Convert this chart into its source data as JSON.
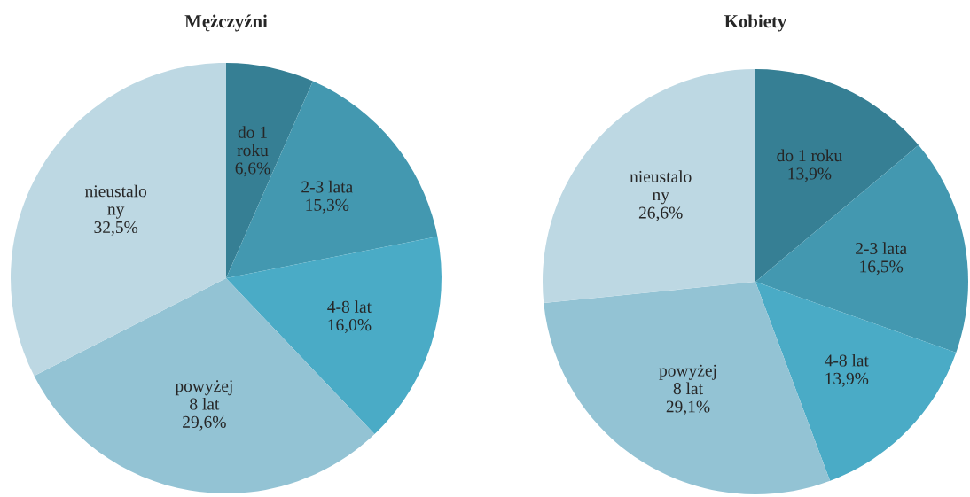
{
  "chart_data": [
    {
      "type": "pie",
      "title": "Mężczyźni",
      "categories": [
        "do 1\nroku",
        "2-3 lata",
        "4-8 lat",
        "powyżej\n8 lat",
        "nieustalo\nny"
      ],
      "values": [
        6.6,
        15.3,
        16.0,
        29.6,
        32.5
      ],
      "value_labels": [
        "6,6%",
        "15,3%",
        "16,0%",
        "29,6%",
        "32,5%"
      ],
      "colors": [
        "#367f94",
        "#4398b0",
        "#4aabc6",
        "#93c3d4",
        "#bdd8e3"
      ]
    },
    {
      "type": "pie",
      "title": "Kobiety",
      "categories": [
        "do 1 roku",
        "2-3 lata",
        "4-8 lat",
        "powyżej\n8 lat",
        "nieustalo\nny"
      ],
      "values": [
        13.9,
        16.5,
        13.9,
        29.1,
        26.6
      ],
      "value_labels": [
        "13,9%",
        "16,5%",
        "13,9%",
        "29,1%",
        "26,6%"
      ],
      "colors": [
        "#367f94",
        "#4398b0",
        "#4aabc6",
        "#93c3d4",
        "#bdd8e3"
      ]
    }
  ]
}
